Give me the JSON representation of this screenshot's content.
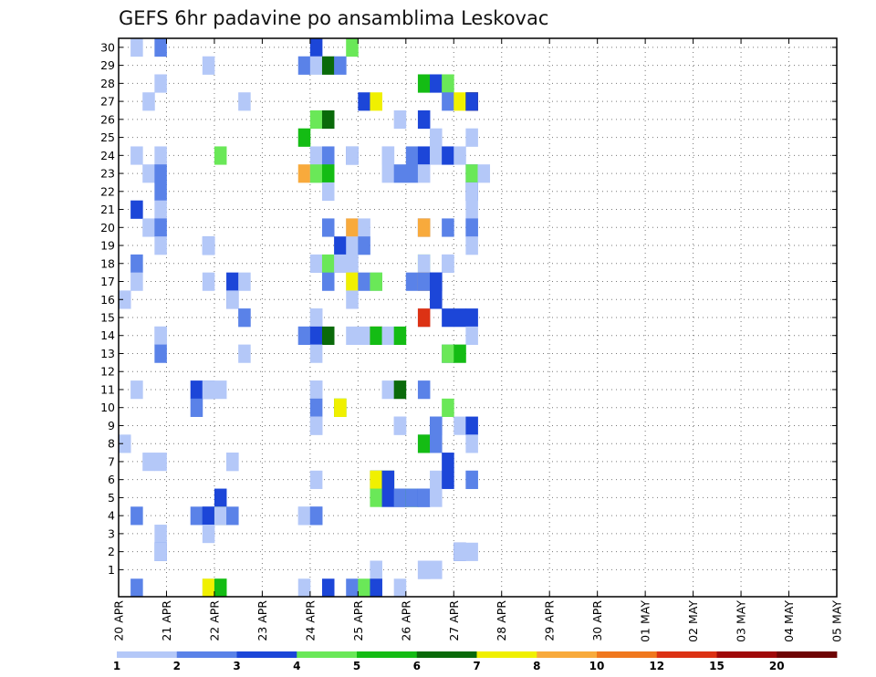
{
  "chart_data": {
    "type": "heatmap",
    "title": "GEFS 6hr padavine po ansamblima Leskovac",
    "xlabel": "",
    "ylabel": "",
    "x_tick_labels": [
      "20 APR",
      "21 APR",
      "22 APR",
      "23 APR",
      "24 APR",
      "25 APR",
      "26 APR",
      "27 APR",
      "28 APR",
      "29 APR",
      "30 APR",
      "01 MAY",
      "02 MAY",
      "03 MAY",
      "04 MAY",
      "05 MAY"
    ],
    "x_range_days": [
      0,
      15
    ],
    "y_tick_labels": [
      "1",
      "2",
      "3",
      "4",
      "5",
      "6",
      "7",
      "8",
      "9",
      "10",
      "11",
      "12",
      "13",
      "14",
      "15",
      "16",
      "17",
      "18",
      "19",
      "20",
      "21",
      "22",
      "23",
      "24",
      "25",
      "26",
      "27",
      "28",
      "29",
      "30"
    ],
    "y_range_members": [
      0,
      30
    ],
    "step_hours": 6,
    "legend": {
      "labels": [
        "1",
        "2",
        "3",
        "4",
        "5",
        "6",
        "7",
        "8",
        "10",
        "12",
        "15",
        "20"
      ],
      "colors": [
        "#b4c8f8",
        "#5a82e8",
        "#1c46d8",
        "#6ae858",
        "#14bc14",
        "#0a6a0a",
        "#f0f000",
        "#f8aa3c",
        "#f0781e",
        "#dc3214",
        "#a00a0a",
        "#6e0505"
      ]
    },
    "cells": [
      {
        "step": 1,
        "member": 30,
        "level": 1
      },
      {
        "step": 3,
        "member": 30,
        "level": 2
      },
      {
        "step": 16,
        "member": 30,
        "level": 3
      },
      {
        "step": 19,
        "member": 30,
        "level": 4
      },
      {
        "step": 7,
        "member": 29,
        "level": 1
      },
      {
        "step": 15,
        "member": 29,
        "level": 2
      },
      {
        "step": 16,
        "member": 29,
        "level": 1
      },
      {
        "step": 17,
        "member": 29,
        "level": 6
      },
      {
        "step": 18,
        "member": 29,
        "level": 2
      },
      {
        "step": 3,
        "member": 28,
        "level": 1
      },
      {
        "step": 25,
        "member": 28,
        "level": 5
      },
      {
        "step": 26,
        "member": 28,
        "level": 3
      },
      {
        "step": 27,
        "member": 28,
        "level": 4
      },
      {
        "step": 2,
        "member": 27,
        "level": 1
      },
      {
        "step": 10,
        "member": 27,
        "level": 1
      },
      {
        "step": 20,
        "member": 27,
        "level": 3
      },
      {
        "step": 21,
        "member": 27,
        "level": 7
      },
      {
        "step": 27,
        "member": 27,
        "level": 2
      },
      {
        "step": 28,
        "member": 27,
        "level": 7
      },
      {
        "step": 29,
        "member": 27,
        "level": 5
      },
      {
        "step": 29,
        "member": 27,
        "level": 11
      },
      {
        "step": 29,
        "member": 27,
        "level": 3
      },
      {
        "step": 16,
        "member": 26,
        "level": 4
      },
      {
        "step": 17,
        "member": 26,
        "level": 6
      },
      {
        "step": 23,
        "member": 26,
        "level": 1
      },
      {
        "step": 25,
        "member": 26,
        "level": 3
      },
      {
        "step": 15,
        "member": 25,
        "level": 5
      },
      {
        "step": 26,
        "member": 25,
        "level": 1
      },
      {
        "step": 29,
        "member": 25,
        "level": 1
      },
      {
        "step": 1,
        "member": 24,
        "level": 1
      },
      {
        "step": 3,
        "member": 24,
        "level": 1
      },
      {
        "step": 8,
        "member": 24,
        "level": 4
      },
      {
        "step": 16,
        "member": 24,
        "level": 1
      },
      {
        "step": 17,
        "member": 24,
        "level": 2
      },
      {
        "step": 19,
        "member": 24,
        "level": 2
      },
      {
        "step": 19,
        "member": 24,
        "level": 1
      },
      {
        "step": 22,
        "member": 24,
        "level": 1
      },
      {
        "step": 22,
        "member": 24,
        "level": 1
      },
      {
        "step": 24,
        "member": 24,
        "level": 2
      },
      {
        "step": 25,
        "member": 24,
        "level": 3
      },
      {
        "step": 26,
        "member": 24,
        "level": 1
      },
      {
        "step": 27,
        "member": 24,
        "level": 3
      },
      {
        "step": 28,
        "member": 24,
        "level": 1
      },
      {
        "step": 2,
        "member": 23,
        "level": 1
      },
      {
        "step": 3,
        "member": 23,
        "level": 2
      },
      {
        "step": 15,
        "member": 23,
        "level": 8
      },
      {
        "step": 16,
        "member": 23,
        "level": 1
      },
      {
        "step": 16,
        "member": 23,
        "level": 4
      },
      {
        "step": 17,
        "member": 23,
        "level": 5
      },
      {
        "step": 22,
        "member": 23,
        "level": 1
      },
      {
        "step": 23,
        "member": 23,
        "level": 2
      },
      {
        "step": 24,
        "member": 23,
        "level": 2
      },
      {
        "step": 25,
        "member": 23,
        "level": 1
      },
      {
        "step": 29,
        "member": 23,
        "level": 2
      },
      {
        "step": 29,
        "member": 23,
        "level": 4
      },
      {
        "step": 30,
        "member": 23,
        "level": 1
      },
      {
        "step": 3,
        "member": 22,
        "level": 2
      },
      {
        "step": 17,
        "member": 22,
        "level": 1
      },
      {
        "step": 29,
        "member": 22,
        "level": 3
      },
      {
        "step": 29,
        "member": 22,
        "level": 1
      },
      {
        "step": 1,
        "member": 21,
        "level": 3
      },
      {
        "step": 3,
        "member": 21,
        "level": 1
      },
      {
        "step": 29,
        "member": 21,
        "level": 1
      },
      {
        "step": 2,
        "member": 20,
        "level": 1
      },
      {
        "step": 3,
        "member": 20,
        "level": 2
      },
      {
        "step": 17,
        "member": 20,
        "level": 2
      },
      {
        "step": 19,
        "member": 20,
        "level": 1
      },
      {
        "step": 19,
        "member": 20,
        "level": 8
      },
      {
        "step": 20,
        "member": 20,
        "level": 1
      },
      {
        "step": 25,
        "member": 20,
        "level": 3
      },
      {
        "step": 25,
        "member": 20,
        "level": 8
      },
      {
        "step": 27,
        "member": 20,
        "level": 2
      },
      {
        "step": 29,
        "member": 20,
        "level": 1
      },
      {
        "step": 29,
        "member": 20,
        "level": 2
      },
      {
        "step": 3,
        "member": 19,
        "level": 1
      },
      {
        "step": 7,
        "member": 19,
        "level": 2
      },
      {
        "step": 7,
        "member": 19,
        "level": 1
      },
      {
        "step": 18,
        "member": 19,
        "level": 3
      },
      {
        "step": 19,
        "member": 19,
        "level": 1
      },
      {
        "step": 20,
        "member": 19,
        "level": 2
      },
      {
        "step": 29,
        "member": 19,
        "level": 1
      },
      {
        "step": 1,
        "member": 18,
        "level": 2
      },
      {
        "step": 16,
        "member": 18,
        "level": 1
      },
      {
        "step": 17,
        "member": 18,
        "level": 4
      },
      {
        "step": 18,
        "member": 18,
        "level": 1
      },
      {
        "step": 19,
        "member": 18,
        "level": 1
      },
      {
        "step": 25,
        "member": 18,
        "level": 4
      },
      {
        "step": 25,
        "member": 18,
        "level": 1
      },
      {
        "step": 27,
        "member": 18,
        "level": 1
      },
      {
        "step": 27,
        "member": 18,
        "level": 1
      },
      {
        "step": 1,
        "member": 17,
        "level": 1
      },
      {
        "step": 7,
        "member": 17,
        "level": 1
      },
      {
        "step": 9,
        "member": 17,
        "level": 3
      },
      {
        "step": 10,
        "member": 17,
        "level": 1
      },
      {
        "step": 17,
        "member": 17,
        "level": 2
      },
      {
        "step": 19,
        "member": 17,
        "level": 1
      },
      {
        "step": 19,
        "member": 17,
        "level": 7
      },
      {
        "step": 20,
        "member": 17,
        "level": 2
      },
      {
        "step": 21,
        "member": 17,
        "level": 1
      },
      {
        "step": 21,
        "member": 17,
        "level": 4
      },
      {
        "step": 24,
        "member": 17,
        "level": 2
      },
      {
        "step": 25,
        "member": 17,
        "level": 8
      },
      {
        "step": 25,
        "member": 17,
        "level": 2
      },
      {
        "step": 26,
        "member": 17,
        "level": 3
      },
      {
        "step": 26,
        "member": 17,
        "level": 3
      },
      {
        "step": 0,
        "member": 16,
        "level": 1
      },
      {
        "step": 9,
        "member": 16,
        "level": 3
      },
      {
        "step": 9,
        "member": 16,
        "level": 1
      },
      {
        "step": 19,
        "member": 16,
        "level": 1
      },
      {
        "step": 26,
        "member": 16,
        "level": 3
      },
      {
        "step": 10,
        "member": 15,
        "level": 1
      },
      {
        "step": 10,
        "member": 15,
        "level": 2
      },
      {
        "step": 16,
        "member": 15,
        "level": 1
      },
      {
        "step": 16,
        "member": 15,
        "level": 1
      },
      {
        "step": 25,
        "member": 15,
        "level": 1
      },
      {
        "step": 25,
        "member": 15,
        "level": 10
      },
      {
        "step": 27,
        "member": 15,
        "level": 3
      },
      {
        "step": 28,
        "member": 15,
        "level": 3
      },
      {
        "step": 29,
        "member": 15,
        "level": 3
      },
      {
        "step": 3,
        "member": 14,
        "level": 1
      },
      {
        "step": 3,
        "member": 14,
        "level": 1
      },
      {
        "step": 15,
        "member": 14,
        "level": 1
      },
      {
        "step": 15,
        "member": 14,
        "level": 2
      },
      {
        "step": 16,
        "member": 14,
        "level": 3
      },
      {
        "step": 17,
        "member": 14,
        "level": 6
      },
      {
        "step": 19,
        "member": 14,
        "level": 1
      },
      {
        "step": 20,
        "member": 14,
        "level": 1
      },
      {
        "step": 21,
        "member": 14,
        "level": 4
      },
      {
        "step": 21,
        "member": 14,
        "level": 9
      },
      {
        "step": 21,
        "member": 14,
        "level": 5
      },
      {
        "step": 22,
        "member": 14,
        "level": 1
      },
      {
        "step": 23,
        "member": 14,
        "level": 5
      },
      {
        "step": 29,
        "member": 14,
        "level": 1
      },
      {
        "step": 3,
        "member": 13,
        "level": 2
      },
      {
        "step": 10,
        "member": 13,
        "level": 1
      },
      {
        "step": 16,
        "member": 13,
        "level": 1
      },
      {
        "step": 27,
        "member": 13,
        "level": 2
      },
      {
        "step": 27,
        "member": 13,
        "level": 4
      },
      {
        "step": 28,
        "member": 13,
        "level": 5
      },
      {
        "step": 1,
        "member": 11,
        "level": 1
      },
      {
        "step": 6,
        "member": 11,
        "level": 3
      },
      {
        "step": 7,
        "member": 11,
        "level": 2
      },
      {
        "step": 7,
        "member": 11,
        "level": 1
      },
      {
        "step": 8,
        "member": 11,
        "level": 1
      },
      {
        "step": 16,
        "member": 11,
        "level": 1
      },
      {
        "step": 16,
        "member": 11,
        "level": 1
      },
      {
        "step": 22,
        "member": 11,
        "level": 1
      },
      {
        "step": 23,
        "member": 11,
        "level": 6
      },
      {
        "step": 25,
        "member": 11,
        "level": 2
      },
      {
        "step": 6,
        "member": 10,
        "level": 2
      },
      {
        "step": 16,
        "member": 10,
        "level": 2
      },
      {
        "step": 18,
        "member": 10,
        "level": 5
      },
      {
        "step": 18,
        "member": 10,
        "level": 7
      },
      {
        "step": 27,
        "member": 10,
        "level": 4
      },
      {
        "step": 16,
        "member": 9,
        "level": 1
      },
      {
        "step": 16,
        "member": 9,
        "level": 1
      },
      {
        "step": 23,
        "member": 9,
        "level": 1
      },
      {
        "step": 23,
        "member": 9,
        "level": 1
      },
      {
        "step": 26,
        "member": 9,
        "level": 2
      },
      {
        "step": 26,
        "member": 9,
        "level": 2
      },
      {
        "step": 28,
        "member": 9,
        "level": 1
      },
      {
        "step": 29,
        "member": 9,
        "level": 3
      },
      {
        "step": 0,
        "member": 8,
        "level": 1
      },
      {
        "step": 25,
        "member": 8,
        "level": 1
      },
      {
        "step": 25,
        "member": 8,
        "level": 5
      },
      {
        "step": 26,
        "member": 8,
        "level": 2
      },
      {
        "step": 29,
        "member": 8,
        "level": 1
      },
      {
        "step": 2,
        "member": 7,
        "level": 1
      },
      {
        "step": 3,
        "member": 7,
        "level": 1
      },
      {
        "step": 9,
        "member": 7,
        "level": 1
      },
      {
        "step": 9,
        "member": 7,
        "level": 1
      },
      {
        "step": 27,
        "member": 7,
        "level": 3
      },
      {
        "step": 16,
        "member": 6,
        "level": 1
      },
      {
        "step": 21,
        "member": 6,
        "level": 1
      },
      {
        "step": 21,
        "member": 6,
        "level": 6
      },
      {
        "step": 21,
        "member": 6,
        "level": 7
      },
      {
        "step": 22,
        "member": 6,
        "level": 6
      },
      {
        "step": 22,
        "member": 6,
        "level": 3
      },
      {
        "step": 26,
        "member": 6,
        "level": 1
      },
      {
        "step": 27,
        "member": 6,
        "level": 3
      },
      {
        "step": 29,
        "member": 6,
        "level": 1
      },
      {
        "step": 29,
        "member": 6,
        "level": 2
      },
      {
        "step": 8,
        "member": 5,
        "level": 3
      },
      {
        "step": 21,
        "member": 5,
        "level": 4
      },
      {
        "step": 22,
        "member": 5,
        "level": 3
      },
      {
        "step": 23,
        "member": 5,
        "level": 3
      },
      {
        "step": 23,
        "member": 5,
        "level": 2
      },
      {
        "step": 24,
        "member": 5,
        "level": 5
      },
      {
        "step": 24,
        "member": 5,
        "level": 2
      },
      {
        "step": 25,
        "member": 5,
        "level": 3
      },
      {
        "step": 25,
        "member": 5,
        "level": 2
      },
      {
        "step": 26,
        "member": 5,
        "level": 1
      },
      {
        "step": 1,
        "member": 4,
        "level": 2
      },
      {
        "step": 6,
        "member": 4,
        "level": 2
      },
      {
        "step": 7,
        "member": 4,
        "level": 3
      },
      {
        "step": 7,
        "member": 4,
        "level": 3
      },
      {
        "step": 8,
        "member": 4,
        "level": 6
      },
      {
        "step": 8,
        "member": 4,
        "level": 1
      },
      {
        "step": 9,
        "member": 4,
        "level": 2
      },
      {
        "step": 15,
        "member": 4,
        "level": 1
      },
      {
        "step": 15,
        "member": 4,
        "level": 1
      },
      {
        "step": 16,
        "member": 4,
        "level": 2
      },
      {
        "step": 16,
        "member": 4,
        "level": 2
      },
      {
        "step": 3,
        "member": 3,
        "level": 1
      },
      {
        "step": 7,
        "member": 3,
        "level": 1
      },
      {
        "step": 3,
        "member": 2,
        "level": 2
      },
      {
        "step": 3,
        "member": 2,
        "level": 1
      },
      {
        "step": 28,
        "member": 2,
        "level": 3
      },
      {
        "step": 28,
        "member": 2,
        "level": 1
      },
      {
        "step": 29,
        "member": 2,
        "level": 1
      },
      {
        "step": 21,
        "member": 1,
        "level": 1
      },
      {
        "step": 25,
        "member": 1,
        "level": 1
      },
      {
        "step": 25,
        "member": 1,
        "level": 1
      },
      {
        "step": 26,
        "member": 1,
        "level": 1
      },
      {
        "step": 1,
        "member": 0,
        "level": 2
      },
      {
        "step": 7,
        "member": 0,
        "level": 1
      },
      {
        "step": 7,
        "member": 0,
        "level": 7
      },
      {
        "step": 8,
        "member": 0,
        "level": 4
      },
      {
        "step": 8,
        "member": 0,
        "level": 5
      },
      {
        "step": 15,
        "member": 0,
        "level": 1
      },
      {
        "step": 17,
        "member": 0,
        "level": 3
      },
      {
        "step": 19,
        "member": 0,
        "level": 2
      },
      {
        "step": 20,
        "member": 0,
        "level": 4
      },
      {
        "step": 21,
        "member": 0,
        "level": 3
      },
      {
        "step": 23,
        "member": 0,
        "level": 1
      }
    ]
  }
}
